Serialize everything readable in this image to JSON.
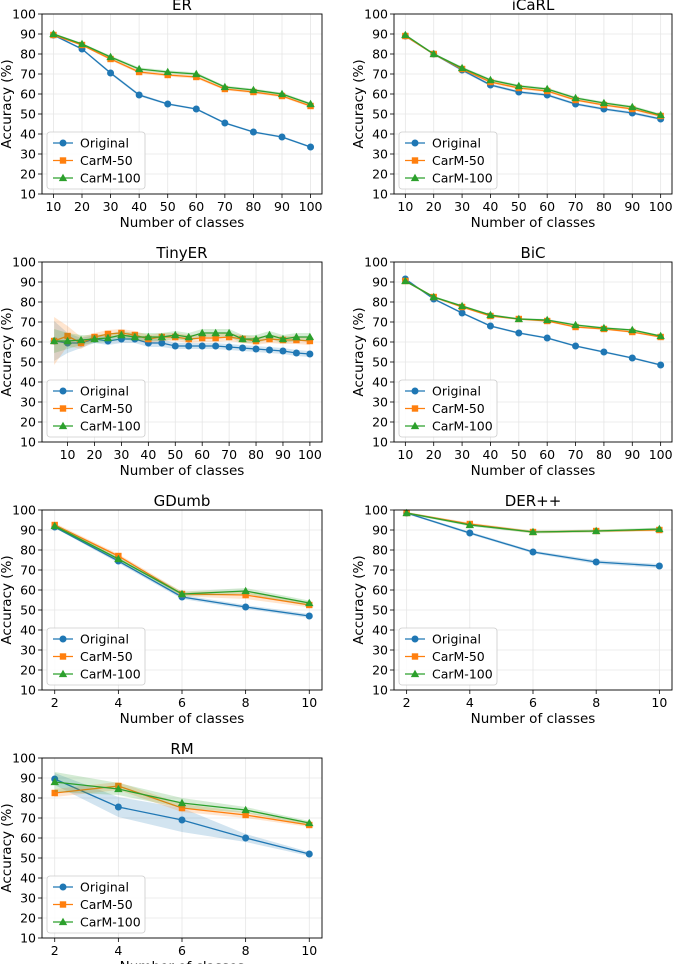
{
  "figure": {
    "series_names": [
      "Original",
      "CarM-50",
      "CarM-100"
    ],
    "colors": {
      "Original": "#1f77b4",
      "CarM-50": "#ff7f0e",
      "CarM-100": "#2ca02c"
    },
    "markers": {
      "Original": "circle",
      "CarM-50": "square",
      "CarM-100": "triangle"
    },
    "xlabel": "Number of classes",
    "ylabel": "Accuracy (%)"
  },
  "chart_data": [
    {
      "type": "line",
      "title": "ER",
      "xlabel": "Number of classes",
      "ylabel": "Accuracy (%)",
      "x": [
        10,
        20,
        30,
        40,
        50,
        60,
        70,
        80,
        90,
        100
      ],
      "xticks": [
        "10",
        "20",
        "30",
        "40",
        "50",
        "60",
        "70",
        "80",
        "90",
        "100"
      ],
      "xlim": [
        6,
        104
      ],
      "ylim": [
        10,
        100
      ],
      "yticks": [
        "10",
        "20",
        "30",
        "40",
        "50",
        "60",
        "70",
        "80",
        "90",
        "100"
      ],
      "grid": true,
      "legend": "lower-left",
      "series": [
        {
          "name": "Original",
          "values": [
            89.5,
            82.5,
            70.5,
            59.5,
            55,
            52.5,
            45.5,
            41,
            38.5,
            33.5
          ],
          "band": [
            0.5,
            0.5,
            0.7,
            0.7,
            0.5,
            0.5,
            0.5,
            0.5,
            0.5,
            0.5
          ]
        },
        {
          "name": "CarM-50",
          "values": [
            89.5,
            84.5,
            77.5,
            71,
            69.5,
            68.5,
            62.5,
            61,
            59,
            54
          ],
          "band": [
            0.5,
            0.5,
            0.7,
            0.8,
            0.8,
            0.8,
            0.7,
            0.7,
            0.7,
            0.7
          ]
        },
        {
          "name": "CarM-100",
          "values": [
            90,
            85,
            78.5,
            72.5,
            71,
            70,
            63.5,
            62,
            60,
            55
          ],
          "band": [
            0.5,
            0.5,
            0.7,
            0.8,
            0.8,
            0.8,
            0.7,
            0.7,
            0.7,
            0.7
          ]
        }
      ]
    },
    {
      "type": "line",
      "title": "iCaRL",
      "xlabel": "Number of classes",
      "ylabel": "Accuracy (%)",
      "x": [
        10,
        20,
        30,
        40,
        50,
        60,
        70,
        80,
        90,
        100
      ],
      "xticks": [
        "10",
        "20",
        "30",
        "40",
        "50",
        "60",
        "70",
        "80",
        "90",
        "100"
      ],
      "xlim": [
        6,
        104
      ],
      "ylim": [
        10,
        100
      ],
      "yticks": [
        "10",
        "20",
        "30",
        "40",
        "50",
        "60",
        "70",
        "80",
        "90",
        "100"
      ],
      "grid": true,
      "legend": "lower-left",
      "series": [
        {
          "name": "Original",
          "values": [
            89,
            80,
            72,
            64.5,
            61,
            59.5,
            55,
            52.5,
            50.5,
            47.5
          ],
          "band": [
            0.5,
            0.5,
            0.7,
            0.7,
            0.7,
            0.7,
            0.7,
            0.7,
            0.7,
            0.7
          ]
        },
        {
          "name": "CarM-50",
          "values": [
            89,
            80,
            72.5,
            66,
            63,
            61.5,
            57,
            54.5,
            52.5,
            49
          ],
          "band": [
            0.5,
            0.5,
            0.7,
            0.7,
            0.7,
            0.7,
            0.7,
            0.7,
            0.7,
            0.7
          ]
        },
        {
          "name": "CarM-100",
          "values": [
            89.5,
            80,
            73,
            67,
            64,
            62.5,
            58,
            55.5,
            53.5,
            49.5
          ],
          "band": [
            0.5,
            0.5,
            0.7,
            0.7,
            0.7,
            0.7,
            0.7,
            0.7,
            0.7,
            0.7
          ]
        }
      ]
    },
    {
      "type": "line",
      "title": "TinyER",
      "xlabel": "Number of classes",
      "ylabel": "Accuracy (%)",
      "x": [
        5,
        10,
        15,
        20,
        25,
        30,
        35,
        40,
        45,
        50,
        55,
        60,
        65,
        70,
        75,
        80,
        85,
        90,
        95,
        100
      ],
      "xticks": [
        "10",
        "20",
        "30",
        "40",
        "50",
        "60",
        "70",
        "80",
        "90",
        "100"
      ],
      "xlim": [
        0.5,
        104.5
      ],
      "ylim": [
        10,
        100
      ],
      "yticks": [
        "10",
        "20",
        "30",
        "40",
        "50",
        "60",
        "70",
        "80",
        "90",
        "100"
      ],
      "grid": true,
      "legend": "lower-left",
      "series": [
        {
          "name": "Original",
          "values": [
            60.5,
            59.5,
            59.5,
            61.5,
            60.5,
            61.5,
            61.5,
            59.5,
            59.5,
            58,
            58,
            58,
            58,
            57.5,
            57,
            56.5,
            56,
            55.5,
            54.5,
            54
          ],
          "band": [
            10,
            5,
            2.5,
            2,
            2,
            2,
            2,
            2,
            2,
            1.5,
            1.5,
            1.5,
            1.5,
            1.5,
            1.5,
            1.5,
            1.5,
            1.5,
            1.5,
            1.5
          ]
        },
        {
          "name": "CarM-50",
          "values": [
            60.5,
            63,
            59.5,
            62.5,
            64,
            64.5,
            63.5,
            61.5,
            62.5,
            62.5,
            61.5,
            62,
            62,
            62.5,
            61.5,
            60.5,
            61.5,
            61,
            61,
            60.5
          ],
          "band": [
            12,
            5,
            3,
            2,
            2,
            2,
            2,
            2,
            2,
            2,
            2,
            2,
            2,
            2,
            2,
            2,
            2,
            2,
            2,
            2
          ]
        },
        {
          "name": "CarM-100",
          "values": [
            60.5,
            60.5,
            61,
            61.5,
            62,
            63.5,
            62.5,
            62.5,
            62.5,
            63.5,
            62.5,
            64.5,
            64.5,
            64.5,
            61.5,
            61.5,
            63.5,
            61.5,
            62.5,
            62.5
          ],
          "band": [
            6,
            4,
            2.5,
            2,
            2,
            2,
            2,
            2,
            2,
            2,
            2,
            2,
            2,
            2,
            2,
            2,
            2,
            2,
            2,
            2
          ]
        }
      ]
    },
    {
      "type": "line",
      "title": "BiC",
      "xlabel": "Number of classes",
      "ylabel": "Accuracy (%)",
      "x": [
        10,
        20,
        30,
        40,
        50,
        60,
        70,
        80,
        90,
        100
      ],
      "xticks": [
        "10",
        "20",
        "30",
        "40",
        "50",
        "60",
        "70",
        "80",
        "90",
        "100"
      ],
      "xlim": [
        6,
        104
      ],
      "ylim": [
        10,
        100
      ],
      "yticks": [
        "10",
        "20",
        "30",
        "40",
        "50",
        "60",
        "70",
        "80",
        "90",
        "100"
      ],
      "grid": true,
      "legend": "lower-left",
      "series": [
        {
          "name": "Original",
          "values": [
            91.5,
            81.5,
            74.5,
            68,
            64.5,
            62,
            58,
            55,
            52,
            48.5
          ],
          "band": [
            0.5,
            0.5,
            0.5,
            0.5,
            0.5,
            0.5,
            0.5,
            0.5,
            0.5,
            0.5
          ]
        },
        {
          "name": "CarM-50",
          "values": [
            90.5,
            82.5,
            77.5,
            73,
            71.5,
            70.5,
            67.5,
            66.5,
            65,
            62.5
          ],
          "band": [
            0.5,
            0.5,
            0.5,
            0.5,
            0.5,
            0.5,
            0.5,
            0.5,
            0.5,
            0.5
          ]
        },
        {
          "name": "CarM-100",
          "values": [
            90.5,
            82.5,
            78,
            73.5,
            71.5,
            71,
            68.5,
            67,
            66,
            63
          ],
          "band": [
            0.5,
            0.5,
            0.5,
            0.5,
            0.5,
            0.5,
            0.5,
            0.5,
            0.5,
            0.5
          ]
        }
      ]
    },
    {
      "type": "line",
      "title": "GDumb",
      "xlabel": "Number of classes",
      "ylabel": "Accuracy (%)",
      "x": [
        2,
        4,
        6,
        8,
        10
      ],
      "xticks": [
        "2",
        "4",
        "6",
        "8",
        "10"
      ],
      "xlim": [
        1.6,
        10.4
      ],
      "ylim": [
        10,
        100
      ],
      "yticks": [
        "10",
        "20",
        "30",
        "40",
        "50",
        "60",
        "70",
        "80",
        "90",
        "100"
      ],
      "grid": true,
      "legend": "lower-left",
      "series": [
        {
          "name": "Original",
          "values": [
            91.5,
            74.5,
            56.5,
            51.5,
            47
          ],
          "band": [
            0.5,
            1,
            1,
            1,
            1
          ]
        },
        {
          "name": "CarM-50",
          "values": [
            92.5,
            77,
            58,
            57.5,
            52.5
          ],
          "band": [
            1,
            1,
            1.2,
            2,
            1.2
          ]
        },
        {
          "name": "CarM-100",
          "values": [
            92,
            75.5,
            58,
            59.5,
            53.5
          ],
          "band": [
            1,
            1,
            1.2,
            1.5,
            1.2
          ]
        }
      ]
    },
    {
      "type": "line",
      "title": "DER++",
      "xlabel": "Number of classes",
      "ylabel": "Accuracy (%)",
      "x": [
        2,
        4,
        6,
        8,
        10
      ],
      "xticks": [
        "2",
        "4",
        "6",
        "8",
        "10"
      ],
      "xlim": [
        1.6,
        10.4
      ],
      "ylim": [
        10,
        100
      ],
      "yticks": [
        "10",
        "20",
        "30",
        "40",
        "50",
        "60",
        "70",
        "80",
        "90",
        "100"
      ],
      "grid": true,
      "legend": "lower-left",
      "series": [
        {
          "name": "Original",
          "values": [
            98.5,
            88.5,
            79,
            74,
            72
          ],
          "band": [
            0.5,
            0.7,
            0.7,
            1,
            1
          ]
        },
        {
          "name": "CarM-50",
          "values": [
            98.5,
            93,
            89,
            89.5,
            90
          ],
          "band": [
            0.5,
            0.7,
            0.7,
            0.7,
            0.7
          ]
        },
        {
          "name": "CarM-100",
          "values": [
            98.5,
            92.5,
            89,
            89.5,
            90.5
          ],
          "band": [
            0.5,
            0.7,
            0.7,
            0.7,
            0.7
          ]
        }
      ]
    },
    {
      "type": "line",
      "title": "RM",
      "xlabel": "Number of classes",
      "ylabel": "Accuracy (%)",
      "x": [
        2,
        4,
        6,
        8,
        10
      ],
      "xticks": [
        "2",
        "4",
        "6",
        "8",
        "10"
      ],
      "xlim": [
        1.6,
        10.4
      ],
      "ylim": [
        10,
        100
      ],
      "yticks": [
        "10",
        "20",
        "30",
        "40",
        "50",
        "60",
        "70",
        "80",
        "90",
        "100"
      ],
      "grid": true,
      "legend": "lower-left",
      "series": [
        {
          "name": "Original",
          "values": [
            89.5,
            75.5,
            69,
            60,
            52
          ],
          "band": [
            3,
            5,
            6,
            2,
            1
          ]
        },
        {
          "name": "CarM-50",
          "values": [
            82.5,
            86,
            75,
            71.5,
            66.5
          ],
          "band": [
            2,
            2,
            2,
            1.5,
            1
          ]
        },
        {
          "name": "CarM-100",
          "values": [
            88,
            84.5,
            77.5,
            74,
            67.5
          ],
          "band": [
            5,
            3,
            2.5,
            1.5,
            1
          ]
        }
      ]
    }
  ]
}
